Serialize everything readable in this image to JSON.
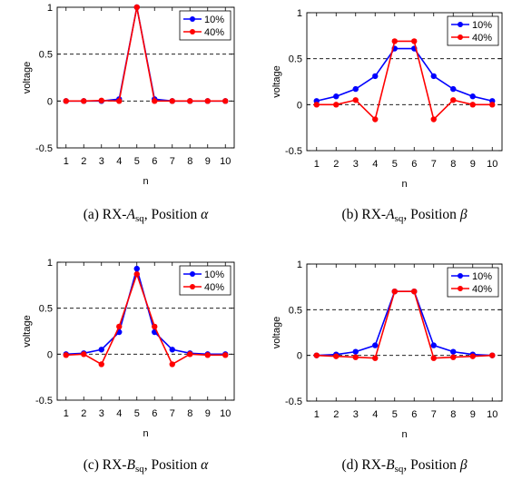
{
  "chart_data": [
    {
      "type": "line",
      "caption": {
        "prefix": "(a)  RX-",
        "var": "A",
        "sub": "sq",
        "mid": ", Position ",
        "pos": "α"
      },
      "xlabel": "n",
      "ylabel": "voltage",
      "xlim": [
        0.5,
        10.5
      ],
      "ylim": [
        -0.5,
        1
      ],
      "x": [
        1,
        2,
        3,
        4,
        5,
        6,
        7,
        8,
        9,
        10
      ],
      "xticks": [
        "1",
        "2",
        "3",
        "4",
        "5",
        "6",
        "7",
        "8",
        "9",
        "10"
      ],
      "yticks": [
        "-0.5",
        "0",
        "0.5",
        "1"
      ],
      "yticks_values": [
        -0.5,
        0,
        0.5,
        1
      ],
      "grid": "dashed at 0 and 0.5",
      "legend": "top-right",
      "series": [
        {
          "name": "10%",
          "color": "#0000ff",
          "values": [
            0,
            0,
            0,
            0.02,
            1,
            0.02,
            0,
            0,
            0,
            0
          ]
        },
        {
          "name": "40%",
          "color": "#ff0000",
          "values": [
            0,
            0,
            0.005,
            0,
            1,
            0,
            0,
            0,
            0,
            0
          ]
        }
      ]
    },
    {
      "type": "line",
      "caption": {
        "prefix": "(b)  RX-",
        "var": "A",
        "sub": "sq",
        "mid": ", Position ",
        "pos": "β"
      },
      "xlabel": "n",
      "ylabel": "voltage",
      "xlim": [
        0.5,
        10.5
      ],
      "ylim": [
        -0.5,
        1
      ],
      "x": [
        1,
        2,
        3,
        4,
        5,
        6,
        7,
        8,
        9,
        10
      ],
      "xticks": [
        "1",
        "2",
        "3",
        "4",
        "5",
        "6",
        "7",
        "8",
        "9",
        "10"
      ],
      "yticks": [
        "-0.5",
        "0",
        "0.5",
        "1"
      ],
      "yticks_values": [
        -0.5,
        0,
        0.5,
        1
      ],
      "grid": "dashed at 0 and 0.5",
      "legend": "top-right",
      "series": [
        {
          "name": "10%",
          "color": "#0000ff",
          "values": [
            0.04,
            0.09,
            0.17,
            0.31,
            0.61,
            0.61,
            0.31,
            0.17,
            0.09,
            0.04
          ]
        },
        {
          "name": "40%",
          "color": "#ff0000",
          "values": [
            0,
            0,
            0.05,
            -0.16,
            0.69,
            0.69,
            -0.16,
            0.05,
            0,
            0
          ]
        }
      ]
    },
    {
      "type": "line",
      "caption": {
        "prefix": "(c)  RX-",
        "var": "B",
        "sub": "sq",
        "mid": ", Position ",
        "pos": "α"
      },
      "xlabel": "n",
      "ylabel": "voltage",
      "xlim": [
        0.5,
        10.5
      ],
      "ylim": [
        -0.5,
        1
      ],
      "x": [
        1,
        2,
        3,
        4,
        5,
        6,
        7,
        8,
        9,
        10
      ],
      "xticks": [
        "1",
        "2",
        "3",
        "4",
        "5",
        "6",
        "7",
        "8",
        "9",
        "10"
      ],
      "yticks": [
        "-0.5",
        "0",
        "0.5",
        "1"
      ],
      "yticks_values": [
        -0.5,
        0,
        0.5,
        1
      ],
      "grid": "dashed at 0 and 0.5",
      "legend": "top-right",
      "series": [
        {
          "name": "10%",
          "color": "#0000ff",
          "values": [
            0,
            0.01,
            0.05,
            0.24,
            0.93,
            0.24,
            0.05,
            0.01,
            0,
            0
          ]
        },
        {
          "name": "40%",
          "color": "#ff0000",
          "values": [
            -0.01,
            0,
            -0.11,
            0.3,
            0.87,
            0.3,
            -0.11,
            0,
            -0.01,
            -0.01
          ]
        }
      ]
    },
    {
      "type": "line",
      "caption": {
        "prefix": "(d)  RX-",
        "var": "B",
        "sub": "sq",
        "mid": ", Position ",
        "pos": "β"
      },
      "xlabel": "n",
      "ylabel": "voltage",
      "xlim": [
        0.5,
        10.5
      ],
      "ylim": [
        -0.5,
        1
      ],
      "x": [
        1,
        2,
        3,
        4,
        5,
        6,
        7,
        8,
        9,
        10
      ],
      "xticks": [
        "1",
        "2",
        "3",
        "4",
        "5",
        "6",
        "7",
        "8",
        "9",
        "10"
      ],
      "yticks": [
        "-0.5",
        "0",
        "0.5",
        "1"
      ],
      "yticks_values": [
        -0.5,
        0,
        0.5,
        1
      ],
      "grid": "dashed at 0 and 0.5",
      "legend": "top-right",
      "series": [
        {
          "name": "10%",
          "color": "#0000ff",
          "values": [
            0,
            0.01,
            0.04,
            0.11,
            0.7,
            0.7,
            0.11,
            0.04,
            0.01,
            0
          ]
        },
        {
          "name": "40%",
          "color": "#ff0000",
          "values": [
            0,
            -0.01,
            -0.02,
            -0.03,
            0.7,
            0.7,
            -0.03,
            -0.02,
            -0.01,
            0
          ]
        }
      ]
    }
  ]
}
